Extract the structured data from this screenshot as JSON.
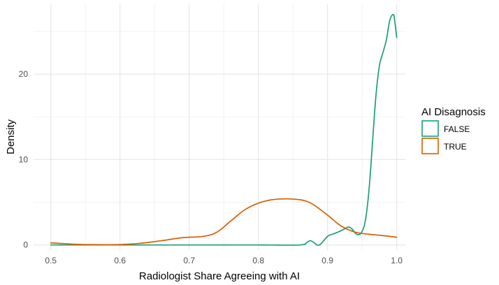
{
  "chart_data": {
    "type": "line",
    "subtype": "density",
    "title": "",
    "xlabel": "Radiologist Share Agreeing with AI",
    "ylabel": "Density",
    "xlim": [
      0.475,
      1.0125
    ],
    "ylim": [
      -0.6,
      28.2
    ],
    "x_ticks": [
      0.5,
      0.6,
      0.7,
      0.8,
      0.9,
      1.0
    ],
    "x_tick_labels": [
      "0.5",
      "0.6",
      "0.7",
      "0.8",
      "0.9",
      "1.0"
    ],
    "y_ticks": [
      0,
      10,
      20
    ],
    "y_tick_labels": [
      "0",
      "10",
      "20"
    ],
    "grid": true,
    "legend": {
      "title": "AI Disagnosis",
      "position": "right"
    },
    "series": [
      {
        "name": "FALSE",
        "color": "#1b9e77",
        "x": [
          0.5,
          0.6,
          0.7,
          0.8,
          0.86,
          0.87,
          0.875,
          0.88,
          0.885,
          0.89,
          0.9,
          0.905,
          0.915,
          0.925,
          0.93,
          0.935,
          0.94,
          0.945,
          0.95,
          0.955,
          0.96,
          0.965,
          0.97,
          0.975,
          0.98,
          0.985,
          0.99,
          0.995,
          0.997,
          1.0
        ],
        "y": [
          0,
          0,
          0,
          0,
          0,
          0.3,
          0.5,
          0.3,
          0,
          0.1,
          1.0,
          1.2,
          1.5,
          1.9,
          2.1,
          1.9,
          1.4,
          1.2,
          1.6,
          3.0,
          6.5,
          12.0,
          17.5,
          21.0,
          22.5,
          24.0,
          26.3,
          27.0,
          26.3,
          24.3
        ]
      },
      {
        "name": "TRUE",
        "color": "#d95f02",
        "x": [
          0.5,
          0.52,
          0.55,
          0.6,
          0.63,
          0.66,
          0.69,
          0.72,
          0.74,
          0.76,
          0.78,
          0.8,
          0.82,
          0.84,
          0.86,
          0.87,
          0.88,
          0.9,
          0.92,
          0.94,
          0.96,
          0.98,
          1.0
        ],
        "y": [
          0.25,
          0.15,
          0.05,
          0.05,
          0.2,
          0.5,
          0.85,
          1.0,
          1.5,
          2.8,
          4.1,
          4.9,
          5.3,
          5.4,
          5.3,
          5.1,
          4.7,
          3.5,
          2.2,
          1.5,
          1.25,
          1.1,
          0.9
        ]
      }
    ]
  }
}
